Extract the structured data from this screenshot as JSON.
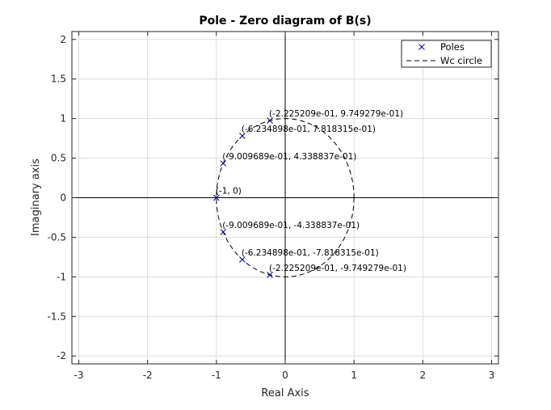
{
  "chart_data": {
    "type": "scatter",
    "title": "Pole - Zero diagram of B(s)",
    "xlabel": "Real Axis",
    "ylabel": "Imaginary axis",
    "xlim": [
      -3.1,
      3.1
    ],
    "ylim": [
      -2.1,
      2.1
    ],
    "xticks": [
      -3,
      -2,
      -1,
      0,
      1,
      2,
      3
    ],
    "xtick_labels": [
      "-3",
      "-2",
      "-1",
      "0",
      "1",
      "2",
      "3"
    ],
    "yticks": [
      -2,
      -1.5,
      -1,
      -0.5,
      0,
      0.5,
      1,
      1.5,
      2
    ],
    "ytick_labels": [
      "-2",
      "-1.5",
      "-1",
      "-0.5",
      "0",
      "0.5",
      "1",
      "1.5",
      "2"
    ],
    "grid": true,
    "legend_position": "top-right",
    "colors": {
      "poles": "#00008b",
      "circle": "#000000",
      "axes": "#000000"
    },
    "series": [
      {
        "name": "Poles",
        "marker": "x",
        "points": [
          {
            "x": -0.2225209,
            "y": 0.9749279,
            "label": "(-2.225209e-01, 9.749279e-01)"
          },
          {
            "x": -0.6234898,
            "y": 0.7818315,
            "label": "(-6.234898e-01, 7.818315e-01)"
          },
          {
            "x": -0.9009689,
            "y": 0.4338837,
            "label": "(-9.009689e-01, 4.338837e-01)"
          },
          {
            "x": -1,
            "y": 0,
            "label": "(-1, 0)"
          },
          {
            "x": -0.9009689,
            "y": -0.4338837,
            "label": "(-9.009689e-01, -4.338837e-01)"
          },
          {
            "x": -0.6234898,
            "y": -0.7818315,
            "label": "(-6.234898e-01, -7.818315e-01)"
          },
          {
            "x": -0.2225209,
            "y": -0.9749279,
            "label": "(-2.225209e-01, -9.749279e-01)"
          }
        ]
      },
      {
        "name": "Wc circle",
        "style": "dashed",
        "circle": {
          "center": [
            0,
            0
          ],
          "radius": 1
        }
      }
    ]
  }
}
